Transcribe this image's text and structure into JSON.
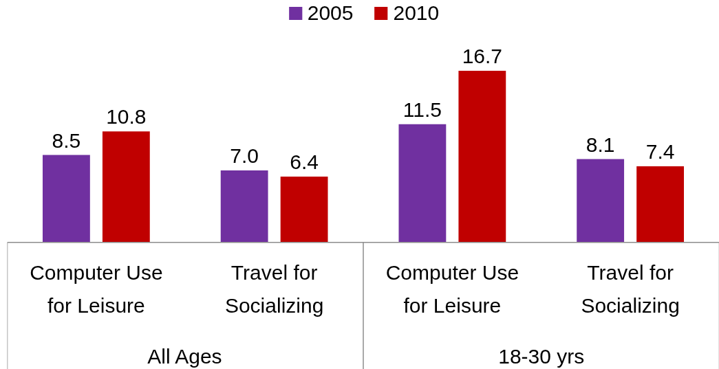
{
  "chart_data": {
    "type": "bar",
    "categories": [
      "Computer Use for Leisure",
      "Travel for Socializing",
      "Computer Use for Leisure",
      "Travel for Socializing"
    ],
    "series": [
      {
        "name": "2005",
        "color": "#7030a0",
        "values": [
          8.5,
          7.0,
          11.5,
          8.1
        ],
        "value_labels": [
          "8.5",
          "7.0",
          "11.5",
          "8.1"
        ]
      },
      {
        "name": "2010",
        "color": "#c00000",
        "values": [
          10.8,
          6.4,
          16.7,
          7.4
        ],
        "value_labels": [
          "10.8",
          "6.4",
          "16.7",
          "7.4"
        ]
      }
    ],
    "annotations": [
      "All Ages",
      "18-30 yrs"
    ],
    "legend": "top",
    "grid": false,
    "tick_labels": "x"
  }
}
